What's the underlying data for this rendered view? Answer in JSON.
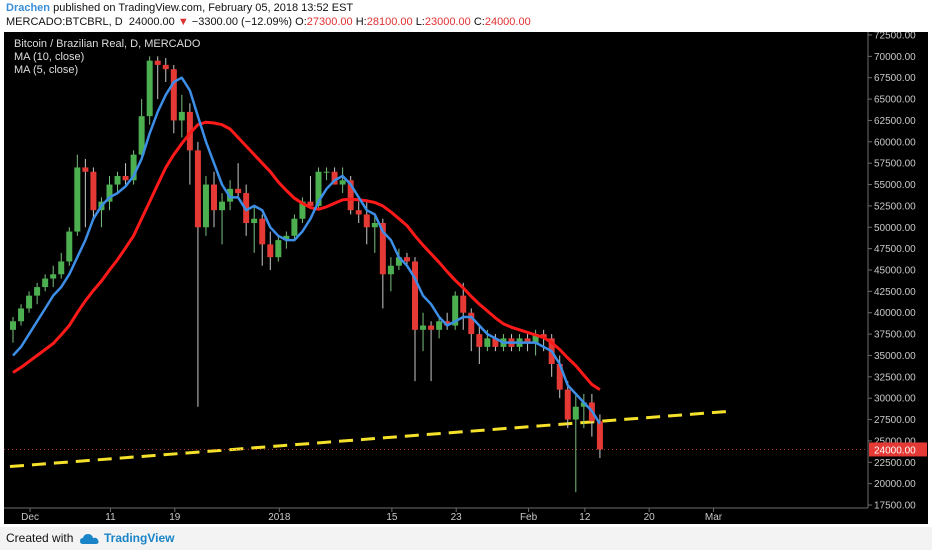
{
  "header": {
    "author": "Drachen",
    "published_text": " published on TradingView.com, February 05, 2018 13:52 EST",
    "symbol": "MERCADO:BTCBRL, D",
    "last": "24000.00",
    "arrow": "▼",
    "change": "−3300.00 (−12.09%)",
    "open_label": "O:",
    "open": "27300.00",
    "high_label": "H:",
    "high": "28100.00",
    "low_label": "L:",
    "low": "23000.00",
    "close_label": "C:",
    "close": "24000.00"
  },
  "legend": {
    "title": "Bitcoin / Brazilian Real, D, MERCADO",
    "ma1": "MA (10, close)",
    "ma2": "MA (5, close)"
  },
  "footer": {
    "created_with": "Created with",
    "brand": "TradingView"
  },
  "colors": {
    "background": "#000000",
    "up": "#4caf50",
    "down": "#e53935",
    "ma10": "#ff1a1a",
    "ma5": "#3d8ee6",
    "trendline": "#f5e12a",
    "price_label": "#e53935"
  },
  "chart_data": {
    "type": "candlestick",
    "title": "Bitcoin / Brazilian Real, D, MERCADO",
    "ylim": [
      17500,
      72500
    ],
    "y_ticks": [
      "17500.00",
      "20000.00",
      "22500.00",
      "25000.00",
      "27500.00",
      "30000.00",
      "32500.00",
      "35000.00",
      "37500.00",
      "40000.00",
      "42500.00",
      "45000.00",
      "47500.00",
      "50000.00",
      "52500.00",
      "55000.00",
      "57500.00",
      "60000.00",
      "62500.00",
      "65000.00",
      "67500.00",
      "70000.00",
      "72500.00"
    ],
    "x_ticks": [
      {
        "label": "Dec",
        "index": 2
      },
      {
        "label": "11",
        "index": 12
      },
      {
        "label": "19",
        "index": 20
      },
      {
        "label": "2018",
        "index": 33
      },
      {
        "label": "15",
        "index": 47
      },
      {
        "label": "23",
        "index": 55
      },
      {
        "label": "Feb",
        "index": 64
      },
      {
        "label": "12",
        "index": 71
      },
      {
        "label": "20",
        "index": 79
      },
      {
        "label": "Mar",
        "index": 87
      }
    ],
    "last_price": "24000.00",
    "candles": [
      {
        "o": 38000,
        "h": 39500,
        "l": 36500,
        "c": 39000
      },
      {
        "o": 39000,
        "h": 41000,
        "l": 38500,
        "c": 40500
      },
      {
        "o": 40500,
        "h": 42500,
        "l": 40000,
        "c": 42000
      },
      {
        "o": 42000,
        "h": 43500,
        "l": 41000,
        "c": 43000
      },
      {
        "o": 43000,
        "h": 44500,
        "l": 42500,
        "c": 44000
      },
      {
        "o": 44000,
        "h": 45500,
        "l": 43000,
        "c": 44500
      },
      {
        "o": 44500,
        "h": 47000,
        "l": 44000,
        "c": 46000
      },
      {
        "o": 46000,
        "h": 50000,
        "l": 45500,
        "c": 49500
      },
      {
        "o": 49500,
        "h": 58500,
        "l": 49000,
        "c": 57000
      },
      {
        "o": 57000,
        "h": 58000,
        "l": 50000,
        "c": 56500
      },
      {
        "o": 56500,
        "h": 57000,
        "l": 51000,
        "c": 52000
      },
      {
        "o": 52000,
        "h": 53500,
        "l": 50000,
        "c": 53000
      },
      {
        "o": 53000,
        "h": 56000,
        "l": 52000,
        "c": 55000
      },
      {
        "o": 55000,
        "h": 56500,
        "l": 54000,
        "c": 56000
      },
      {
        "o": 56000,
        "h": 57500,
        "l": 55000,
        "c": 55500
      },
      {
        "o": 55500,
        "h": 59000,
        "l": 55000,
        "c": 58500
      },
      {
        "o": 58500,
        "h": 65000,
        "l": 58000,
        "c": 63000
      },
      {
        "o": 63000,
        "h": 70000,
        "l": 62000,
        "c": 69500
      },
      {
        "o": 69500,
        "h": 70000,
        "l": 65000,
        "c": 69000
      },
      {
        "o": 69000,
        "h": 69800,
        "l": 67000,
        "c": 68500
      },
      {
        "o": 68500,
        "h": 69000,
        "l": 61000,
        "c": 62500
      },
      {
        "o": 62500,
        "h": 65500,
        "l": 60500,
        "c": 63500
      },
      {
        "o": 63500,
        "h": 64500,
        "l": 55000,
        "c": 59000
      },
      {
        "o": 59000,
        "h": 60000,
        "l": 29000,
        "c": 50000
      },
      {
        "o": 50000,
        "h": 56000,
        "l": 49000,
        "c": 55000
      },
      {
        "o": 55000,
        "h": 56500,
        "l": 50000,
        "c": 52000
      },
      {
        "o": 52000,
        "h": 54000,
        "l": 48000,
        "c": 53000
      },
      {
        "o": 53000,
        "h": 55500,
        "l": 52000,
        "c": 54500
      },
      {
        "o": 54500,
        "h": 57500,
        "l": 53500,
        "c": 54000
      },
      {
        "o": 54000,
        "h": 55000,
        "l": 49000,
        "c": 50500
      },
      {
        "o": 50500,
        "h": 52500,
        "l": 47000,
        "c": 51000
      },
      {
        "o": 51000,
        "h": 51500,
        "l": 45500,
        "c": 48000
      },
      {
        "o": 48000,
        "h": 49500,
        "l": 45000,
        "c": 46500
      },
      {
        "o": 46500,
        "h": 49000,
        "l": 46000,
        "c": 48500
      },
      {
        "o": 48500,
        "h": 49500,
        "l": 47500,
        "c": 49000
      },
      {
        "o": 49000,
        "h": 51500,
        "l": 48500,
        "c": 51000
      },
      {
        "o": 51000,
        "h": 53500,
        "l": 50500,
        "c": 53000
      },
      {
        "o": 53000,
        "h": 56000,
        "l": 52500,
        "c": 52500
      },
      {
        "o": 52500,
        "h": 57000,
        "l": 52000,
        "c": 56500
      },
      {
        "o": 56500,
        "h": 57000,
        "l": 55500,
        "c": 56500
      },
      {
        "o": 56500,
        "h": 57000,
        "l": 55000,
        "c": 55000
      },
      {
        "o": 55000,
        "h": 57000,
        "l": 54000,
        "c": 55500
      },
      {
        "o": 55500,
        "h": 56000,
        "l": 51500,
        "c": 52000
      },
      {
        "o": 52000,
        "h": 53000,
        "l": 50500,
        "c": 51500
      },
      {
        "o": 51500,
        "h": 53000,
        "l": 48000,
        "c": 50000
      },
      {
        "o": 50000,
        "h": 51500,
        "l": 47000,
        "c": 50500
      },
      {
        "o": 50500,
        "h": 51000,
        "l": 40500,
        "c": 44500
      },
      {
        "o": 44500,
        "h": 46500,
        "l": 42500,
        "c": 45500
      },
      {
        "o": 45500,
        "h": 47500,
        "l": 45000,
        "c": 46500
      },
      {
        "o": 46500,
        "h": 47000,
        "l": 45500,
        "c": 46000
      },
      {
        "o": 46000,
        "h": 46500,
        "l": 32000,
        "c": 38000
      },
      {
        "o": 38000,
        "h": 40000,
        "l": 35500,
        "c": 38500
      },
      {
        "o": 38500,
        "h": 39000,
        "l": 32000,
        "c": 38000
      },
      {
        "o": 38000,
        "h": 39500,
        "l": 37000,
        "c": 39000
      },
      {
        "o": 39000,
        "h": 40000,
        "l": 38000,
        "c": 38500
      },
      {
        "o": 38500,
        "h": 42500,
        "l": 38000,
        "c": 42000
      },
      {
        "o": 42000,
        "h": 43500,
        "l": 38000,
        "c": 40000
      },
      {
        "o": 40000,
        "h": 40500,
        "l": 35500,
        "c": 37500
      },
      {
        "o": 37500,
        "h": 38500,
        "l": 34000,
        "c": 36000
      },
      {
        "o": 36000,
        "h": 38000,
        "l": 35500,
        "c": 37000
      },
      {
        "o": 37000,
        "h": 37500,
        "l": 35500,
        "c": 36000
      },
      {
        "o": 36000,
        "h": 37500,
        "l": 35500,
        "c": 37000
      },
      {
        "o": 37000,
        "h": 37500,
        "l": 35500,
        "c": 36000
      },
      {
        "o": 36000,
        "h": 37500,
        "l": 35500,
        "c": 37000
      },
      {
        "o": 37000,
        "h": 37500,
        "l": 35500,
        "c": 36500
      },
      {
        "o": 36500,
        "h": 38000,
        "l": 35000,
        "c": 37500
      },
      {
        "o": 37500,
        "h": 38000,
        "l": 35500,
        "c": 37000
      },
      {
        "o": 37000,
        "h": 37500,
        "l": 32500,
        "c": 34000
      },
      {
        "o": 34000,
        "h": 35000,
        "l": 30000,
        "c": 31000
      },
      {
        "o": 31000,
        "h": 32000,
        "l": 26500,
        "c": 27500
      },
      {
        "o": 27500,
        "h": 30500,
        "l": 19000,
        "c": 29000
      },
      {
        "o": 29000,
        "h": 30500,
        "l": 26500,
        "c": 29500
      },
      {
        "o": 29500,
        "h": 30500,
        "l": 25500,
        "c": 27300
      },
      {
        "o": 27300,
        "h": 28100,
        "l": 23000,
        "c": 24000
      }
    ],
    "ma10": [
      33000,
      33600,
      34300,
      35000,
      35700,
      36400,
      37400,
      38500,
      40000,
      41400,
      42600,
      43700,
      45000,
      46200,
      47600,
      49000,
      51000,
      53000,
      55000,
      57000,
      58500,
      59800,
      61000,
      62000,
      62300,
      62200,
      62000,
      61500,
      60500,
      59500,
      58500,
      57500,
      56500,
      55300,
      54300,
      53400,
      52800,
      52300,
      52100,
      52400,
      52800,
      53200,
      53300,
      53200,
      53100,
      52900,
      52500,
      51800,
      51000,
      50200,
      49000,
      47900,
      46900,
      45900,
      44800,
      43800,
      42900,
      41900,
      41000,
      40200,
      39400,
      38700,
      38300,
      38000,
      37700,
      37400,
      37100,
      36500,
      35700,
      34700,
      33800,
      32700,
      31600,
      31000
    ],
    "ma5": [
      35000,
      36000,
      37500,
      39000,
      40500,
      42000,
      43000,
      44500,
      46500,
      48500,
      51000,
      52500,
      53500,
      54000,
      54800,
      56000,
      58000,
      61000,
      63500,
      65500,
      67000,
      67500,
      66000,
      63000,
      60000,
      57500,
      55000,
      53500,
      53500,
      52000,
      52500,
      52000,
      50000,
      49000,
      48500,
      48500,
      49500,
      51000,
      53000,
      54500,
      55500,
      56000,
      55000,
      53500,
      52000,
      51500,
      49500,
      48500,
      46500,
      45500,
      44000,
      42000,
      41000,
      39500,
      38500,
      39000,
      39500,
      39500,
      38500,
      37500,
      37000,
      36500,
      36500,
      36500,
      36500,
      36500,
      36000,
      35500,
      34000,
      31500,
      30500,
      29500,
      28500,
      27000
    ],
    "trendline": {
      "from": {
        "index": 0,
        "value": 22000
      },
      "to": {
        "index": 90,
        "value": 28500
      }
    }
  }
}
